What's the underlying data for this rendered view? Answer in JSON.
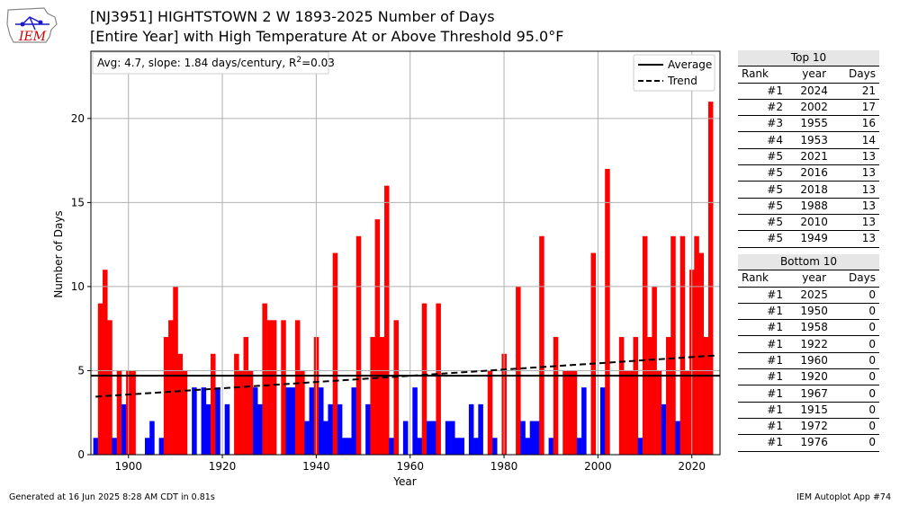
{
  "title_line1": "[NJ3951] HIGHTSTOWN 2 W 1893-2025 Number of Days",
  "title_line2": "[Entire Year] with High Temperature At or Above Threshold 95.0°F",
  "logo_text": "IEM",
  "footer_left": "Generated at 16 Jun 2025 8:28 AM CDT in 0.81s",
  "footer_right": "IEM Autoplot App #74",
  "colors": {
    "above": "#ff0000",
    "below": "#0000ff"
  },
  "chart_data": {
    "type": "bar",
    "annotation": "Avg: 4.7, slope: 1.84 days/century, R²=0.03",
    "xlabel": "Year",
    "ylabel": "Number of Days",
    "xlim": [
      1892,
      2026
    ],
    "ylim": [
      0,
      24
    ],
    "xticks": [
      1900,
      1920,
      1940,
      1960,
      1980,
      2000,
      2020
    ],
    "yticks": [
      0,
      5,
      10,
      15,
      20
    ],
    "grid": true,
    "legend_position": "top-right",
    "legend": [
      {
        "label": "Average",
        "style": "solid"
      },
      {
        "label": "Trend",
        "style": "dashed"
      }
    ],
    "average": 4.7,
    "trend": {
      "start": [
        1893,
        3.45
      ],
      "end": [
        2025,
        5.9
      ]
    },
    "x": [
      1893,
      1894,
      1895,
      1896,
      1897,
      1898,
      1899,
      1900,
      1901,
      1902,
      1903,
      1904,
      1905,
      1906,
      1907,
      1908,
      1909,
      1910,
      1911,
      1912,
      1913,
      1914,
      1915,
      1916,
      1917,
      1918,
      1919,
      1920,
      1921,
      1922,
      1923,
      1924,
      1925,
      1926,
      1927,
      1928,
      1929,
      1930,
      1931,
      1932,
      1933,
      1934,
      1935,
      1936,
      1937,
      1938,
      1939,
      1940,
      1941,
      1942,
      1943,
      1944,
      1945,
      1946,
      1947,
      1948,
      1949,
      1950,
      1951,
      1952,
      1953,
      1954,
      1955,
      1956,
      1957,
      1958,
      1959,
      1960,
      1961,
      1962,
      1963,
      1964,
      1965,
      1966,
      1967,
      1968,
      1969,
      1970,
      1971,
      1972,
      1973,
      1974,
      1975,
      1976,
      1977,
      1978,
      1979,
      1980,
      1981,
      1982,
      1983,
      1984,
      1985,
      1986,
      1987,
      1988,
      1989,
      1990,
      1991,
      1992,
      1993,
      1994,
      1995,
      1996,
      1997,
      1998,
      1999,
      2000,
      2001,
      2002,
      2003,
      2004,
      2005,
      2006,
      2007,
      2008,
      2009,
      2010,
      2011,
      2012,
      2013,
      2014,
      2015,
      2016,
      2017,
      2018,
      2019,
      2020,
      2021,
      2022,
      2023,
      2024,
      2025
    ],
    "values": [
      1,
      9,
      11,
      8,
      1,
      5,
      3,
      5,
      5,
      0,
      0,
      1,
      2,
      0,
      1,
      7,
      8,
      10,
      6,
      5,
      0,
      4,
      0,
      4,
      3,
      6,
      4,
      0,
      3,
      0,
      6,
      5,
      7,
      5,
      4,
      3,
      9,
      8,
      8,
      0,
      8,
      4,
      4,
      8,
      5,
      2,
      4,
      7,
      4,
      2,
      3,
      12,
      3,
      1,
      1,
      4,
      13,
      0,
      3,
      7,
      14,
      7,
      16,
      1,
      8,
      0,
      2,
      0,
      4,
      1,
      9,
      2,
      2,
      9,
      0,
      2,
      2,
      1,
      1,
      0,
      3,
      1,
      3,
      0,
      5,
      1,
      0,
      6,
      0,
      0,
      10,
      2,
      1,
      2,
      2,
      13,
      0,
      1,
      7,
      0,
      5,
      5,
      5,
      1,
      4,
      0,
      12,
      0,
      4,
      17,
      0,
      0,
      7,
      5,
      5,
      7,
      1,
      13,
      7,
      10,
      5,
      3,
      7,
      13,
      2,
      13,
      5,
      11,
      13,
      12,
      7,
      21,
      0
    ]
  },
  "top_table": {
    "title": "Top 10",
    "headers": [
      "Rank",
      "year",
      "Days"
    ],
    "rows": [
      [
        "#1",
        "2024",
        "21"
      ],
      [
        "#2",
        "2002",
        "17"
      ],
      [
        "#3",
        "1955",
        "16"
      ],
      [
        "#4",
        "1953",
        "14"
      ],
      [
        "#5",
        "2021",
        "13"
      ],
      [
        "#5",
        "2016",
        "13"
      ],
      [
        "#5",
        "2018",
        "13"
      ],
      [
        "#5",
        "1988",
        "13"
      ],
      [
        "#5",
        "2010",
        "13"
      ],
      [
        "#5",
        "1949",
        "13"
      ]
    ]
  },
  "bottom_table": {
    "title": "Bottom 10",
    "headers": [
      "Rank",
      "year",
      "Days"
    ],
    "rows": [
      [
        "#1",
        "2025",
        "0"
      ],
      [
        "#1",
        "1950",
        "0"
      ],
      [
        "#1",
        "1958",
        "0"
      ],
      [
        "#1",
        "1922",
        "0"
      ],
      [
        "#1",
        "1960",
        "0"
      ],
      [
        "#1",
        "1920",
        "0"
      ],
      [
        "#1",
        "1967",
        "0"
      ],
      [
        "#1",
        "1915",
        "0"
      ],
      [
        "#1",
        "1972",
        "0"
      ],
      [
        "#1",
        "1976",
        "0"
      ]
    ]
  }
}
